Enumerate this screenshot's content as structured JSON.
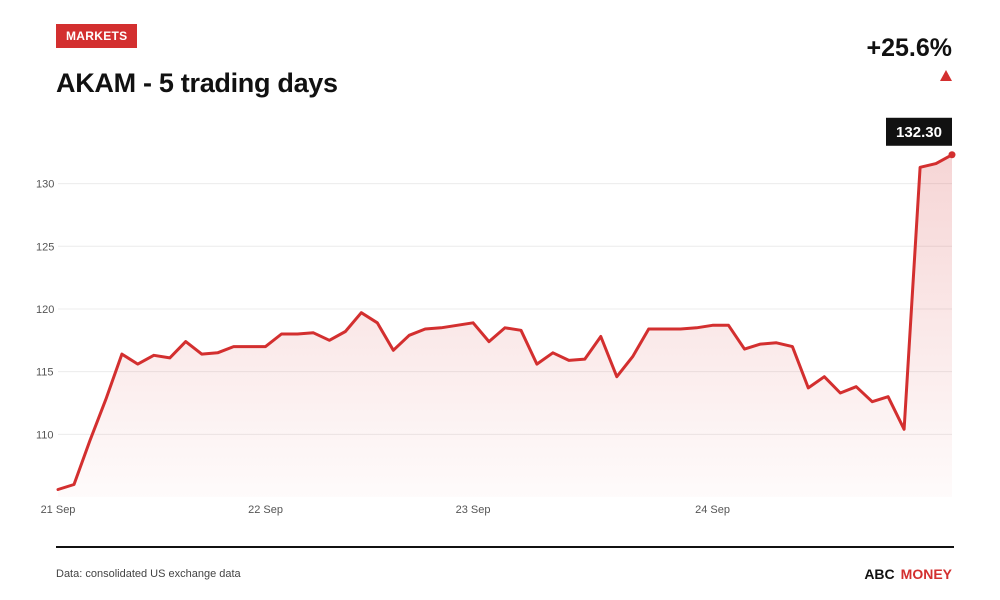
{
  "badge": "MARKETS",
  "title": "AKAM - 5 trading days",
  "change": "+25.6%",
  "colors": {
    "accent": "#d32f2f",
    "text": "#111111",
    "grid": "#ececec",
    "tick": "#555555"
  },
  "chart_data": {
    "type": "area",
    "ylim": [
      105,
      133
    ],
    "yticks": [
      110,
      115,
      120,
      125,
      130
    ],
    "xticks": [
      {
        "label": "21 Sep",
        "x": 0
      },
      {
        "label": "22 Sep",
        "x": 13
      },
      {
        "label": "23 Sep",
        "x": 26
      },
      {
        "label": "24 Sep",
        "x": 41
      }
    ],
    "grid": true,
    "last_label": "132.30",
    "values": [
      105.6,
      106.0,
      109.5,
      112.8,
      116.4,
      115.6,
      116.3,
      116.1,
      117.4,
      116.4,
      116.5,
      117.0,
      117.0,
      117.0,
      118.0,
      118.0,
      118.1,
      117.5,
      118.2,
      119.7,
      118.9,
      116.7,
      117.9,
      118.4,
      118.5,
      118.7,
      118.9,
      117.4,
      118.5,
      118.3,
      115.6,
      116.5,
      115.9,
      116.0,
      117.8,
      114.6,
      116.2,
      118.4,
      118.4,
      118.4,
      118.5,
      118.7,
      118.7,
      116.8,
      117.2,
      117.3,
      117.0,
      113.7,
      114.6,
      113.3,
      113.8,
      112.6,
      113.0,
      110.4,
      131.3,
      131.6,
      132.3
    ]
  },
  "footer": {
    "source": "Data: consolidated US exchange data",
    "brand_part1": "ABC",
    "brand_part2": "MONEY"
  }
}
